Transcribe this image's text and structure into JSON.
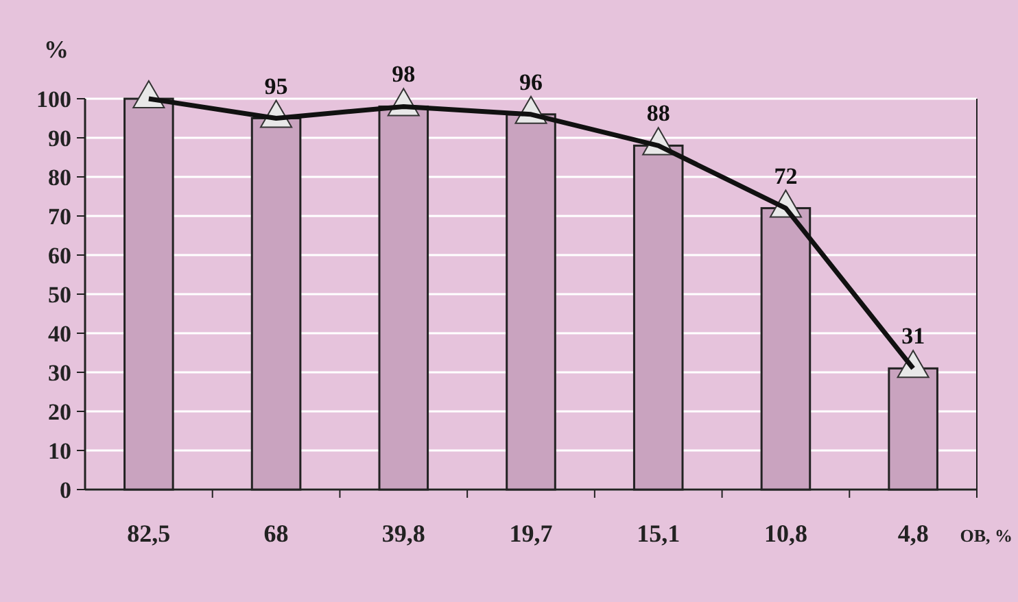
{
  "chart_data": {
    "type": "bar",
    "ylabel": "%",
    "xlabel": "ОВ, %",
    "categories": [
      "82,5",
      "68",
      "39,8",
      "19,7",
      "15,1",
      "10,8",
      "4,8"
    ],
    "series": [
      {
        "color": "#c9a3bf",
        "values": [
          100,
          95,
          98,
          96,
          88,
          72,
          31
        ]
      },
      {
        "type": "line",
        "color": "#111111",
        "values": [
          100,
          95,
          98,
          96,
          88,
          72,
          31
        ],
        "value_labels": [
          null,
          "95",
          "98",
          "96",
          "88",
          "72",
          "31"
        ]
      }
    ],
    "ylim": [
      0,
      100
    ],
    "yticks": [
      0,
      10,
      20,
      30,
      40,
      50,
      60,
      70,
      80,
      90,
      100
    ],
    "grid": "y",
    "marker": "triangle",
    "line_style": "solid",
    "legend": false
  }
}
